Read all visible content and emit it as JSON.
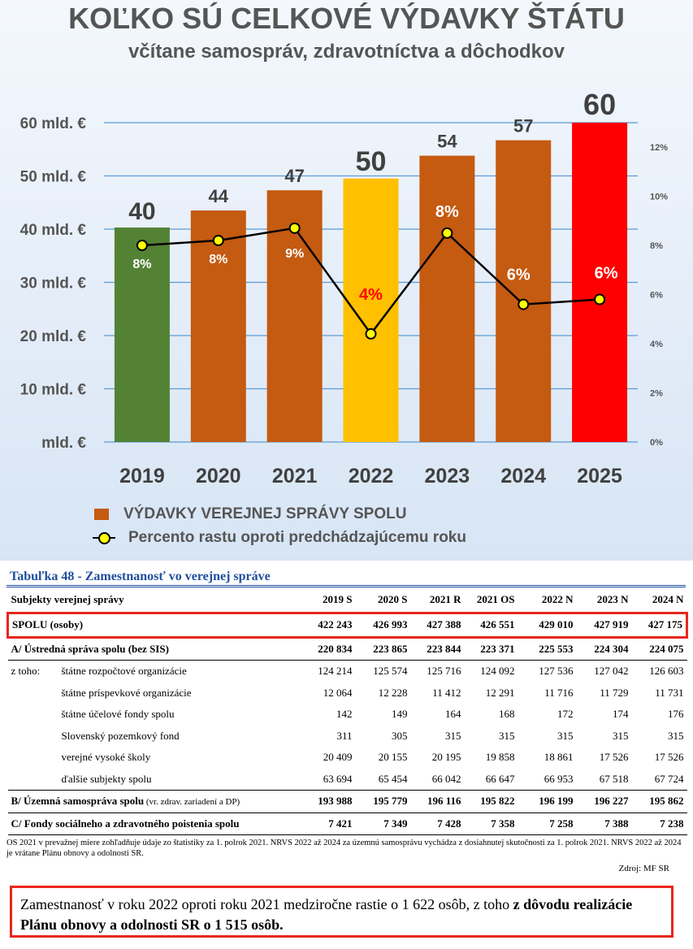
{
  "chart_data": {
    "type": "bar+line",
    "title": "KOĽKO SÚ CELKOVÉ VÝDAVKY ŠTÁTU",
    "subtitle": "včítane samospráv, zdravotníctva a dôchodkov",
    "categories": [
      "2019",
      "2020",
      "2021",
      "2022",
      "2023",
      "2024",
      "2025"
    ],
    "y_ticks": [
      "mld. €",
      "10 mld. €",
      "20 mld. €",
      "30 mld. €",
      "40 mld. €",
      "50 mld. €",
      "60 mld. €"
    ],
    "ylim": [
      0,
      60
    ],
    "y2_ticks": [
      "0%",
      "2%",
      "4%",
      "6%",
      "8%",
      "10%",
      "12%"
    ],
    "y2lim": [
      0,
      13
    ],
    "grid": true,
    "series": [
      {
        "name": "VÝDAVKY VEREJNEJ SPRÁVY SPOLU",
        "kind": "bar",
        "values": [
          40.3,
          43.5,
          47.3,
          49.5,
          53.8,
          56.7,
          60
        ],
        "labels": [
          "40",
          "44",
          "47",
          "50",
          "54",
          "57",
          "60"
        ],
        "colors": [
          "#548235",
          "#c55a11",
          "#c55a11",
          "#ffc000",
          "#c55a11",
          "#c55a11",
          "#ff0000"
        ]
      },
      {
        "name": "Percento rastu oproti predchádzajúcemu roku",
        "kind": "line",
        "axis": "y2",
        "values": [
          8.0,
          8.2,
          8.7,
          4.4,
          8.5,
          5.6,
          5.8
        ],
        "labels": [
          "8%",
          "8%",
          "9%",
          "4%",
          "8%",
          "6%",
          "6%"
        ],
        "label_colors": [
          "#ffffff",
          "#ffffff",
          "#ffffff",
          "#ff0000",
          "#ffffff",
          "#ffffff",
          "#ffffff"
        ]
      }
    ],
    "legend_position": "bottom-left"
  },
  "table": {
    "caption": "Tabuľka 48 - Zamestnanosť vo verejnej správe",
    "headers": [
      "Subjekty verejnej správy",
      "2019 S",
      "2020 S",
      "2021 R",
      "2021 OS",
      "2022 N",
      "2023 N",
      "2024 N"
    ],
    "rows": [
      {
        "prefix": "",
        "label": "SPOLU   (osoby)",
        "note": "",
        "values": [
          "422 243",
          "426 993",
          "427 388",
          "426 551",
          "429 010",
          "427 919",
          "427 175"
        ]
      },
      {
        "prefix": "",
        "label": "A/  Ústredná správa spolu (bez SIS)",
        "note": "",
        "values": [
          "220 834",
          "223 865",
          "223 844",
          "223 371",
          "225 553",
          "224 304",
          "224 075"
        ]
      },
      {
        "prefix": "z toho:",
        "label": "štátne rozpočtové organizácie",
        "note": "",
        "values": [
          "124 214",
          "125 574",
          "125 716",
          "124 092",
          "127 536",
          "127 042",
          "126 603"
        ]
      },
      {
        "prefix": "",
        "label": "štátne príspevkové organizácie",
        "note": "",
        "values": [
          "12 064",
          "12 228",
          "11 412",
          "12 291",
          "11 716",
          "11 729",
          "11 731"
        ]
      },
      {
        "prefix": "",
        "label": "štátne účelové fondy spolu",
        "note": "",
        "values": [
          "142",
          "149",
          "164",
          "168",
          "172",
          "174",
          "176"
        ]
      },
      {
        "prefix": "",
        "label": "Slovenský pozemkový fond",
        "note": "",
        "values": [
          "311",
          "305",
          "315",
          "315",
          "315",
          "315",
          "315"
        ]
      },
      {
        "prefix": "",
        "label": "verejné vysoké školy",
        "note": "",
        "values": [
          "20 409",
          "20 155",
          "20 195",
          "19 858",
          "18 861",
          "17 526",
          "17 526"
        ]
      },
      {
        "prefix": "",
        "label": "ďalšie subjekty spolu",
        "note": "",
        "values": [
          "63 694",
          "65 454",
          "66 042",
          "66 647",
          "66 953",
          "67 518",
          "67 724"
        ]
      },
      {
        "prefix": "",
        "label": "B/  Územná samospráva spolu",
        "note": " (vr. zdrav. zariadení a DP)",
        "values": [
          "193 988",
          "195 779",
          "196 116",
          "195 822",
          "196 199",
          "196 227",
          "195 862"
        ]
      },
      {
        "prefix": "",
        "label": "C/  Fondy sociálneho a zdravotného poistenia spolu",
        "note": "",
        "values": [
          "7 421",
          "7 349",
          "7 428",
          "7 358",
          "7 258",
          "7 388",
          "7 238"
        ]
      }
    ],
    "note": "OS 2021 v prevažnej miere zohľadňuje  údaje zo štatistiky za 1. polrok 2021. NRVS 2022 až 2024 za územnú samosprávu vychádza z dosiahnutej skutočnosti za 1. polrok 2021.  NRVS 2022 až 2024 je vrátane Plánu obnovy a odolnosti SR.",
    "source": "Zdroj: MF SR"
  },
  "highlight": {
    "part1": "Zamestnanosť v roku 2022 oproti roku 2021 medziročne  rastie o 1 622 osôb, z toho ",
    "part2": "z dôvodu realizácie Plánu obnovy a odolnosti SR o 1 515 osôb."
  }
}
